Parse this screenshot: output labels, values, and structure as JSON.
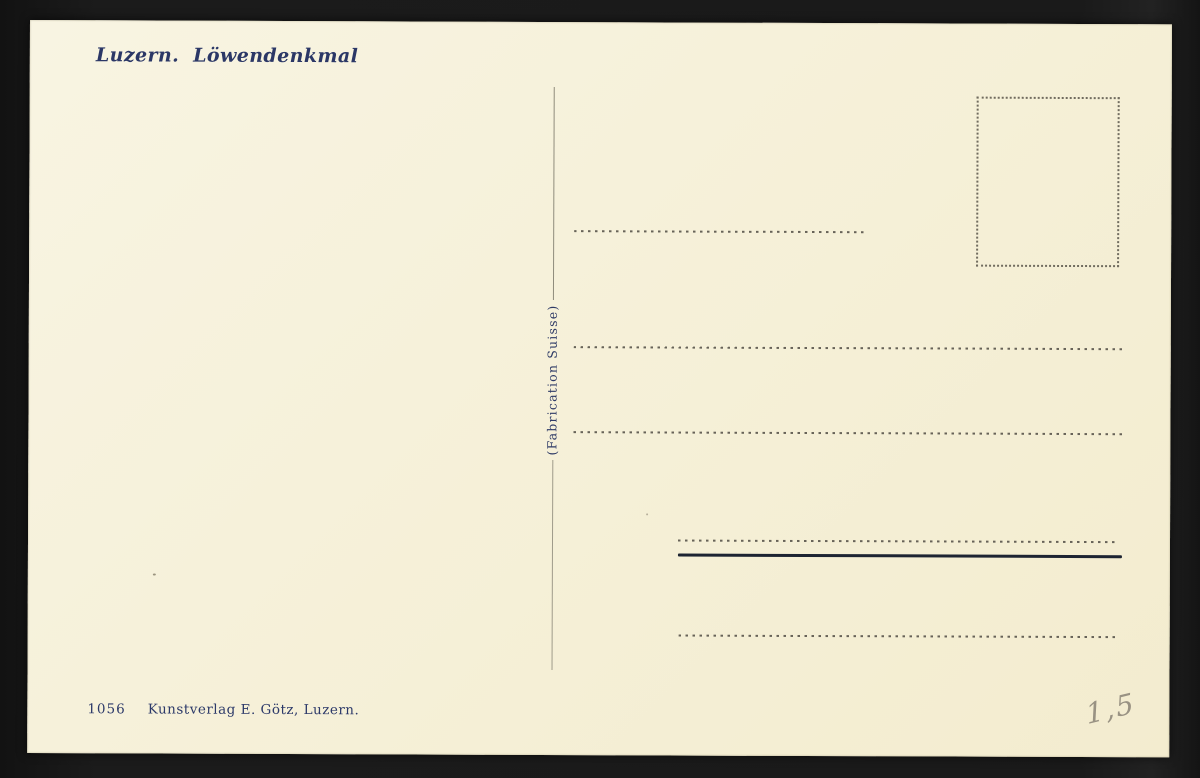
{
  "postcard": {
    "title": "Luzern. Löwendenkmal",
    "fabrication_note": "(Fabrication Suisse)",
    "publisher": {
      "number": "1056",
      "name": "Kunstverlag E. Götz, Luzern."
    },
    "handwritten_price": "1,5"
  },
  "colors": {
    "backdrop": "#181818",
    "card_paper": "#f6f1da",
    "ink_blue": "#2b3766",
    "print_dots": "#57534a",
    "solid_rule": "#1d2432",
    "pencil_gray": "#8a8376"
  }
}
